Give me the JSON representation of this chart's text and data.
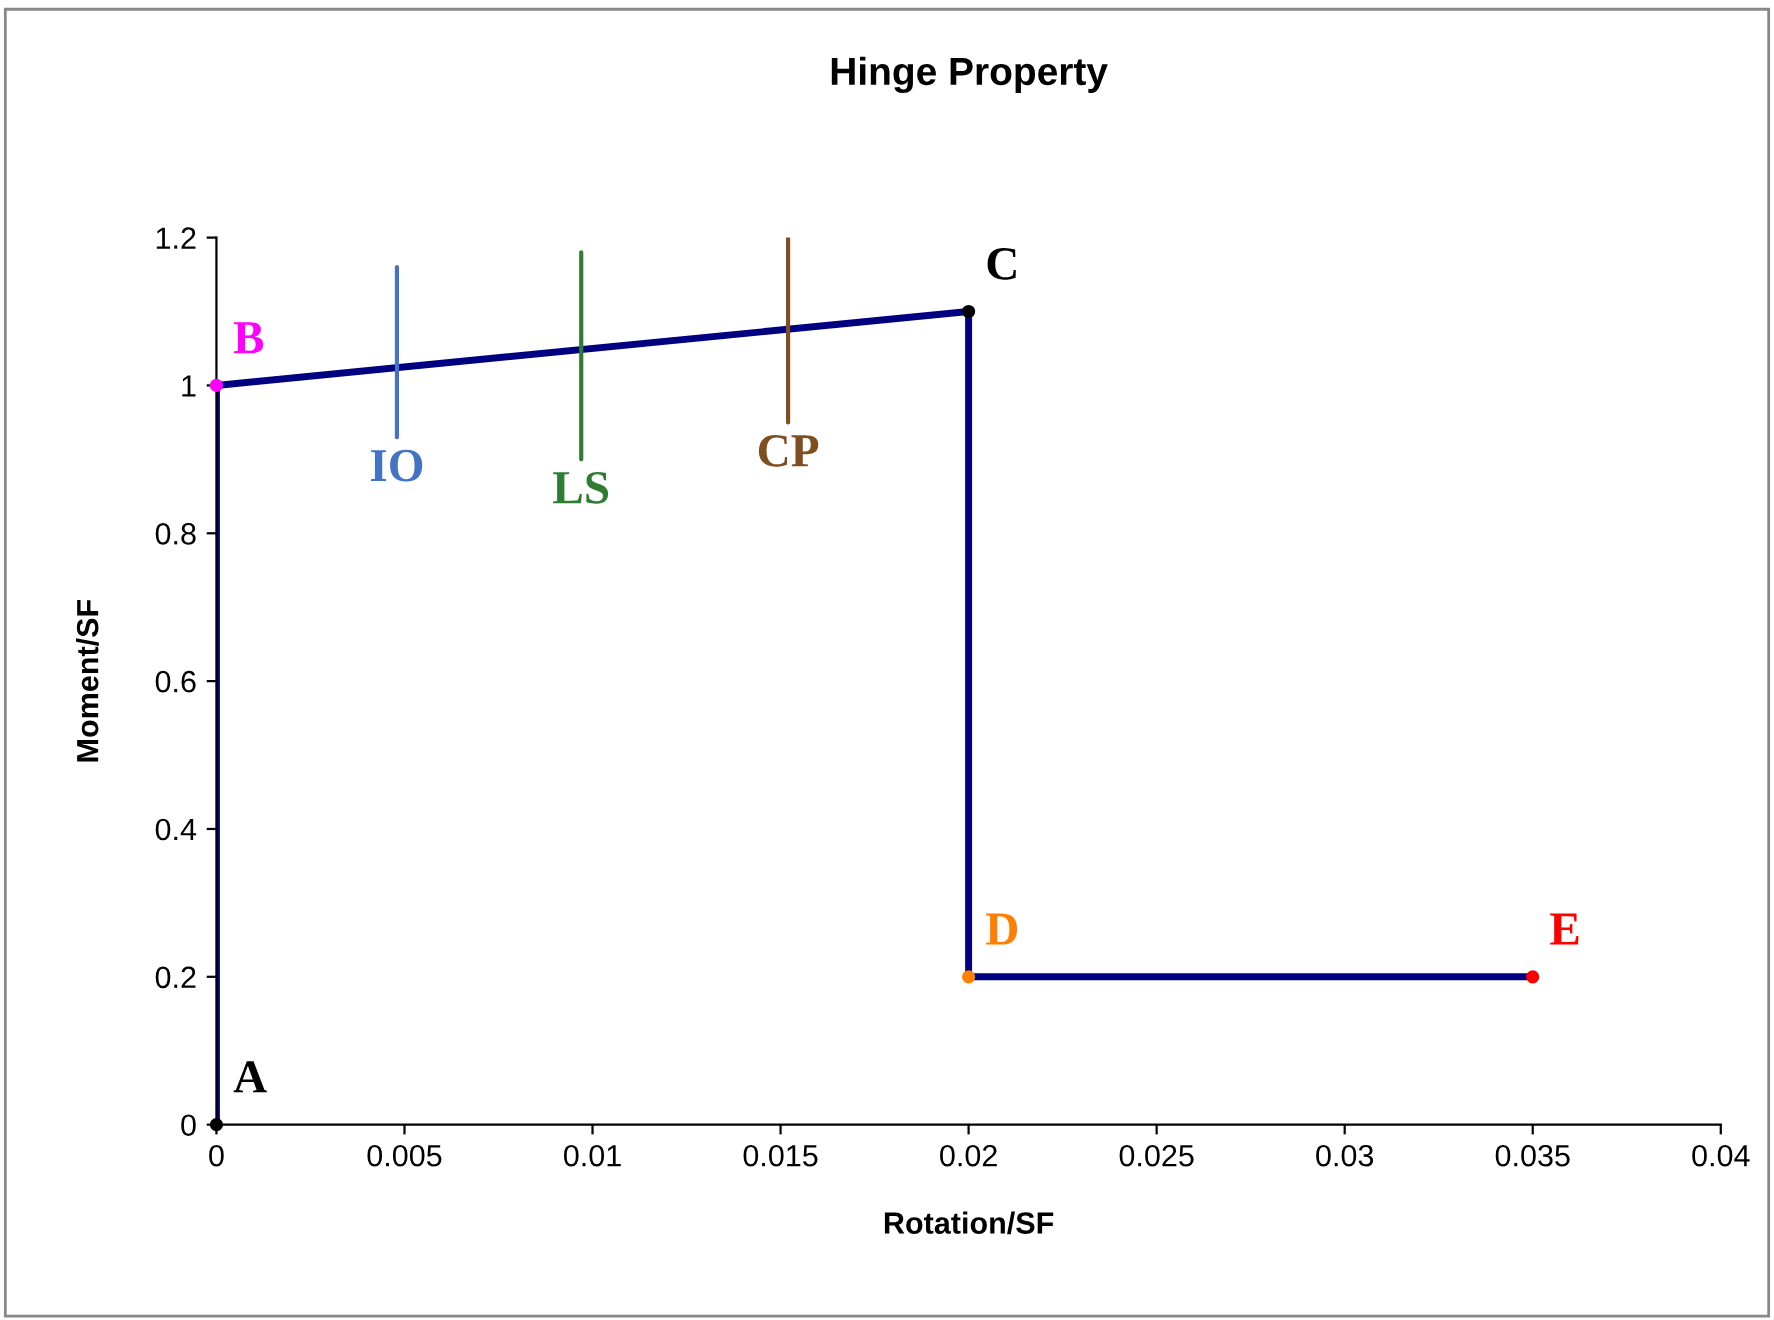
{
  "chart_data": {
    "type": "line",
    "title": "Hinge Property",
    "xlabel": "Rotation/SF",
    "ylabel": "Moment/SF",
    "x": [
      0,
      0,
      0.02,
      0.02,
      0.035
    ],
    "series": [
      {
        "color": "#000080",
        "values": [
          0,
          1,
          1.1,
          0.2,
          0.2
        ]
      },
      {
        "name": "IO",
        "color": "#4472c4",
        "x": [
          0.0048,
          0.0048
        ],
        "values": [
          0.93,
          1.16
        ]
      },
      {
        "name": "LS",
        "color": "#2e7d32",
        "x": [
          0.0097,
          0.0097
        ],
        "values": [
          0.9,
          1.18
        ]
      },
      {
        "name": "CP",
        "color": "#7f4f1f",
        "x": [
          0.0152,
          0.0152
        ],
        "values": [
          0.95,
          1.2
        ]
      },
      {
        "name": "A",
        "type": "scatter",
        "marker": "circle",
        "color": "#000000",
        "x": [
          0
        ],
        "values": [
          0
        ]
      },
      {
        "name": "B",
        "type": "scatter",
        "marker": "circle",
        "color": "#ff00ff",
        "x": [
          0
        ],
        "values": [
          1
        ]
      },
      {
        "name": "C",
        "type": "scatter",
        "marker": "circle",
        "color": "#000000",
        "x": [
          0.02
        ],
        "values": [
          1.1
        ]
      },
      {
        "name": "D",
        "type": "scatter",
        "marker": "circle",
        "color": "#ff7f00",
        "x": [
          0.02
        ],
        "values": [
          0.2
        ]
      },
      {
        "name": "E",
        "type": "scatter",
        "marker": "circle",
        "color": "#ff0000",
        "x": [
          0.035
        ],
        "values": [
          0.2
        ]
      }
    ],
    "xlim": [
      0,
      0.04
    ],
    "xticks": [
      0,
      0.005,
      0.01,
      0.015,
      0.02,
      0.025,
      0.03,
      0.035,
      0.04
    ],
    "ylim": [
      0,
      1.2
    ],
    "yticks": [
      0,
      0.2,
      0.4,
      0.6,
      0.8,
      1,
      1.2
    ],
    "grid": false,
    "legend": false
  }
}
